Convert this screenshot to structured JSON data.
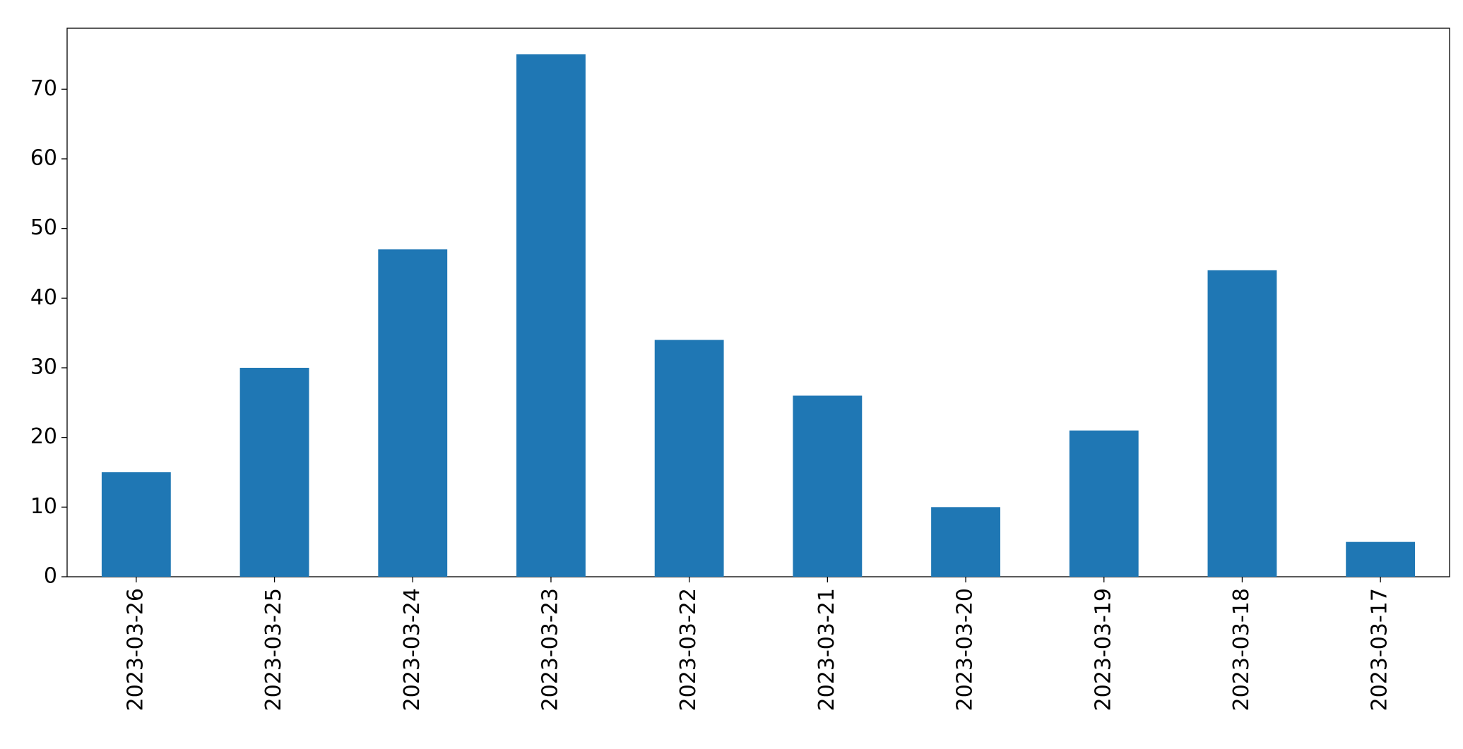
{
  "chart_data": {
    "type": "bar",
    "categories": [
      "2023-03-26",
      "2023-03-25",
      "2023-03-24",
      "2023-03-23",
      "2023-03-22",
      "2023-03-21",
      "2023-03-20",
      "2023-03-19",
      "2023-03-18",
      "2023-03-17"
    ],
    "values": [
      15,
      30,
      47,
      75,
      34,
      26,
      10,
      21,
      44,
      5
    ],
    "color": "#1f77b4",
    "ylim": [
      0,
      78.75
    ],
    "yticks": [
      0,
      10,
      20,
      30,
      40,
      50,
      60,
      70
    ],
    "grid": false
  }
}
